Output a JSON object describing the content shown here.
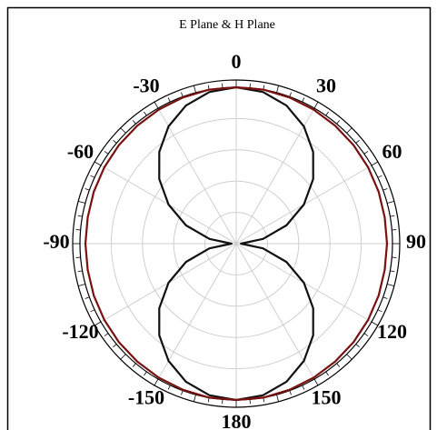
{
  "chart_data": {
    "type": "polar",
    "title": "E Plane & H Plane",
    "angles": [
      -180,
      -170,
      -160,
      -150,
      -140,
      -130,
      -120,
      -110,
      -100,
      -90,
      -80,
      -70,
      -60,
      -50,
      -40,
      -30,
      -20,
      -10,
      0,
      10,
      20,
      30,
      40,
      50,
      60,
      70,
      80,
      90,
      100,
      110,
      120,
      130,
      140,
      150,
      160,
      170,
      180
    ],
    "series": [
      {
        "name": "E Plane",
        "color": "#111111",
        "values": [
          1,
          0.985,
          0.94,
          0.866,
          0.766,
          0.643,
          0.5,
          0.342,
          0.174,
          0.03,
          0.174,
          0.342,
          0.5,
          0.643,
          0.766,
          0.866,
          0.94,
          0.985,
          1,
          0.985,
          0.94,
          0.866,
          0.766,
          0.643,
          0.5,
          0.342,
          0.174,
          0.03,
          0.174,
          0.342,
          0.5,
          0.643,
          0.766,
          0.866,
          0.94,
          0.985,
          1
        ]
      },
      {
        "name": "H Plane",
        "color": "#7a1010",
        "values": [
          1,
          1,
          0.995,
          0.99,
          0.985,
          0.98,
          0.975,
          0.97,
          0.965,
          0.965,
          0.965,
          0.97,
          0.975,
          0.98,
          0.985,
          0.99,
          0.995,
          1,
          1,
          1,
          0.995,
          0.99,
          0.985,
          0.98,
          0.975,
          0.97,
          0.965,
          0.965,
          0.965,
          0.97,
          0.975,
          0.98,
          0.985,
          0.99,
          0.995,
          1,
          1
        ]
      }
    ],
    "angle_ticks": [
      0,
      30,
      60,
      90,
      120,
      150,
      180,
      -150,
      -120,
      -90,
      -60,
      -30
    ],
    "rlim": [
      0,
      1
    ],
    "rticks": [
      0.2,
      0.4,
      0.6,
      0.8
    ],
    "grid": true
  }
}
